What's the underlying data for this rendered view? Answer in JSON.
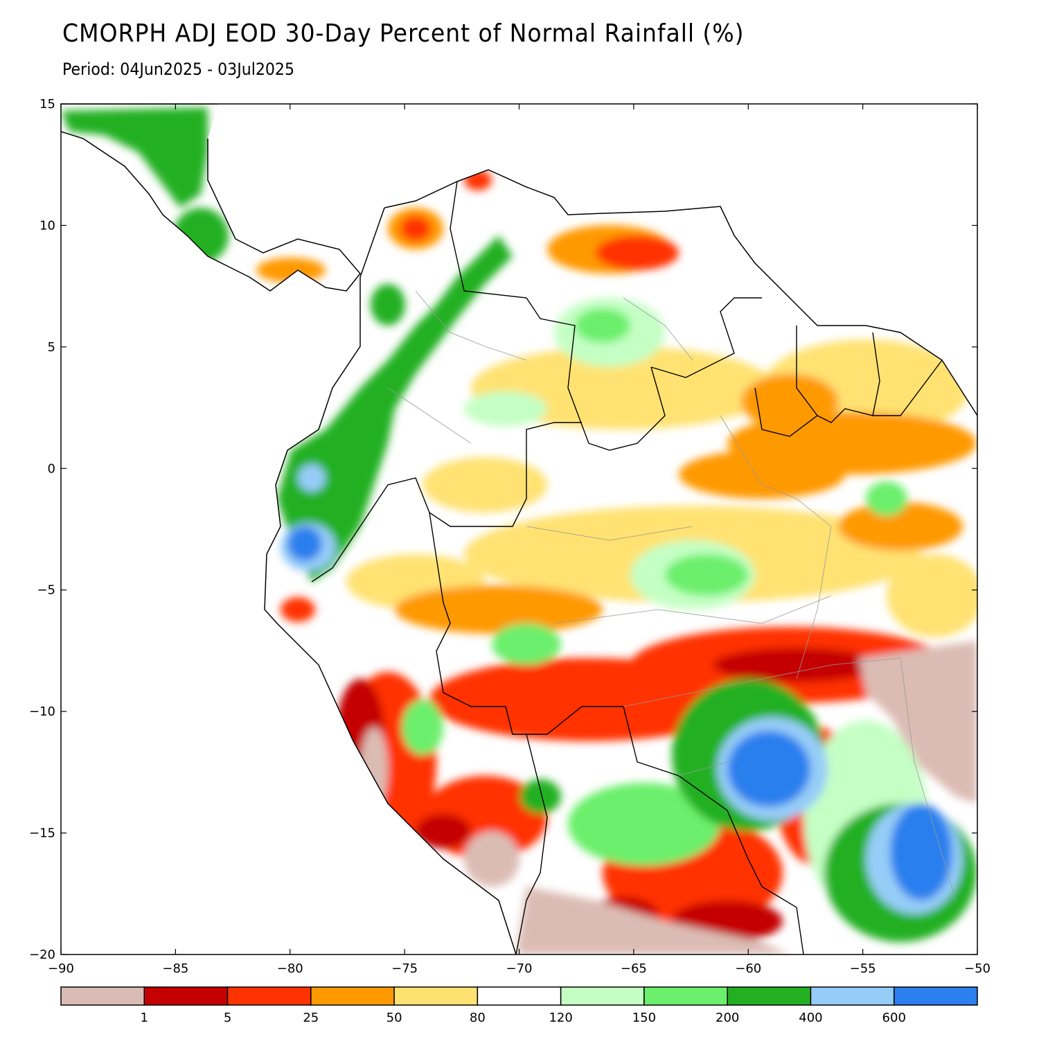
{
  "title": "CMORPH ADJ EOD 30-Day Percent of Normal Rainfall (%)",
  "subtitle": "Period: 04Jun2025 - 03Jul2025",
  "map": {
    "lon_range": [
      -90,
      -50
    ],
    "lat_range": [
      -20,
      15
    ],
    "lon_ticks": [
      {
        "value": -90,
        "label": "−90"
      },
      {
        "value": -85,
        "label": "−85"
      },
      {
        "value": -80,
        "label": "−80"
      },
      {
        "value": -75,
        "label": "−75"
      },
      {
        "value": -70,
        "label": "−70"
      },
      {
        "value": -65,
        "label": "−65"
      },
      {
        "value": -60,
        "label": "−60"
      },
      {
        "value": -55,
        "label": "−55"
      },
      {
        "value": -50,
        "label": "−50"
      }
    ],
    "lat_ticks": [
      {
        "value": 15,
        "label": "15"
      },
      {
        "value": 10,
        "label": "10"
      },
      {
        "value": 5,
        "label": "5"
      },
      {
        "value": 0,
        "label": "0"
      },
      {
        "value": -5,
        "label": "−5"
      },
      {
        "value": -10,
        "label": "−10"
      },
      {
        "value": -15,
        "label": "−15"
      },
      {
        "value": -20,
        "label": "−20"
      }
    ]
  },
  "colorbar": {
    "colors": [
      "#dbbcb4",
      "#c40000",
      "#ff3300",
      "#ff9900",
      "#ffe272",
      "#ffffff",
      "#c4ffc4",
      "#6cef6c",
      "#22b022",
      "#96cdf8",
      "#2b7fee"
    ],
    "labels": [
      "1",
      "5",
      "25",
      "50",
      "80",
      "120",
      "150",
      "200",
      "400",
      "600"
    ]
  },
  "colors": {
    "ocean": "#ffffff",
    "coast": "#000000",
    "border": "#999999"
  }
}
